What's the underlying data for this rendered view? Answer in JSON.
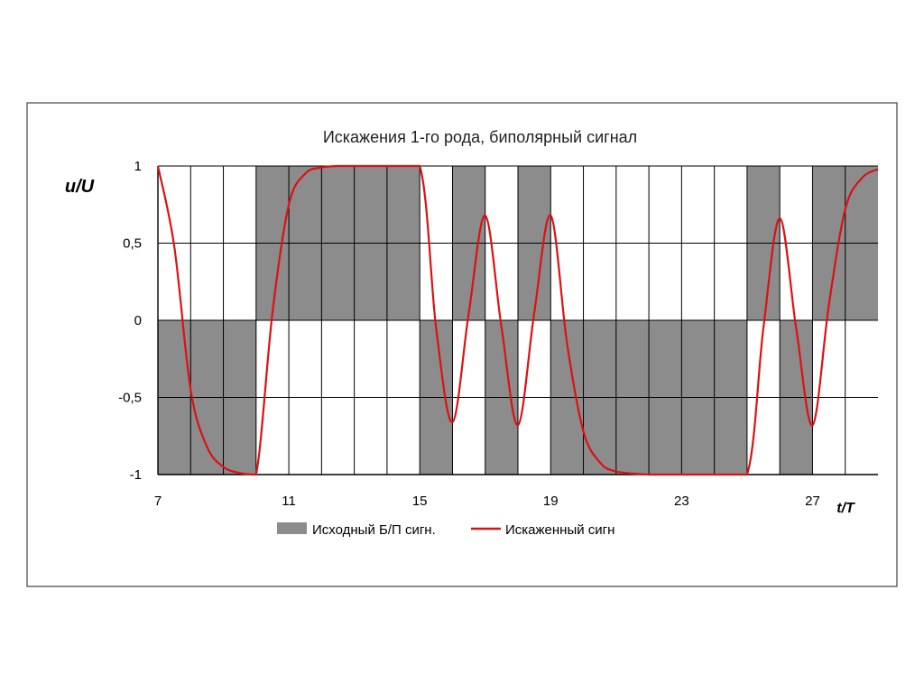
{
  "chart_data": {
    "type": "area",
    "title": "Искажения 1-го рода, биполярный сигнал",
    "ylabel": "u/U",
    "xlabel": "t/T",
    "xlim": [
      7,
      29
    ],
    "ylim": [
      -1,
      1
    ],
    "x_ticks": [
      7,
      11,
      15,
      19,
      23,
      27
    ],
    "y_ticks": [
      "1",
      "0,5",
      "0",
      "-0,5",
      "-1"
    ],
    "y_tick_values": [
      1,
      0.5,
      0,
      -0.5,
      -1
    ],
    "grid": true,
    "legend_position": "bottom",
    "colors": {
      "source_fill": "#8c8c8c",
      "distorted_line": "#dd1111",
      "grid": "#000000"
    },
    "series": [
      {
        "name": "Исходный Б/П сигн.",
        "kind": "step-area",
        "x": [
          7,
          8,
          9,
          10,
          11,
          12,
          13,
          14,
          15,
          16,
          17,
          18,
          19,
          20,
          21,
          22,
          23,
          24,
          25,
          26,
          27,
          28
        ],
        "values": [
          -1,
          -1,
          -1,
          1,
          1,
          1,
          1,
          1,
          -1,
          1,
          -1,
          1,
          -1,
          -1,
          -1,
          -1,
          -1,
          -1,
          1,
          -1,
          1,
          1
        ]
      },
      {
        "name": "Искаженный сигн",
        "kind": "line",
        "x": [
          7,
          7.5,
          8,
          8.5,
          9,
          9.5,
          10,
          10.5,
          11,
          11.5,
          12,
          12.5,
          13,
          14,
          15,
          15.5,
          16,
          16.5,
          17,
          17.5,
          18,
          18.5,
          19,
          19.5,
          20,
          20.5,
          21,
          22,
          23,
          24,
          25,
          25.5,
          26,
          26.5,
          27,
          27.5,
          28,
          28.5,
          29
        ],
        "values": [
          1,
          0.48,
          -0.45,
          -0.82,
          -0.95,
          -0.99,
          -1,
          0.05,
          0.75,
          0.95,
          0.99,
          1,
          1,
          1,
          1,
          -0.05,
          -0.66,
          0.05,
          0.68,
          -0.05,
          -0.68,
          0.05,
          0.68,
          -0.15,
          -0.72,
          -0.92,
          -0.98,
          -1,
          -1,
          -1,
          -1,
          -0.05,
          0.66,
          -0.05,
          -0.68,
          0.1,
          0.72,
          0.92,
          0.98
        ]
      }
    ]
  }
}
